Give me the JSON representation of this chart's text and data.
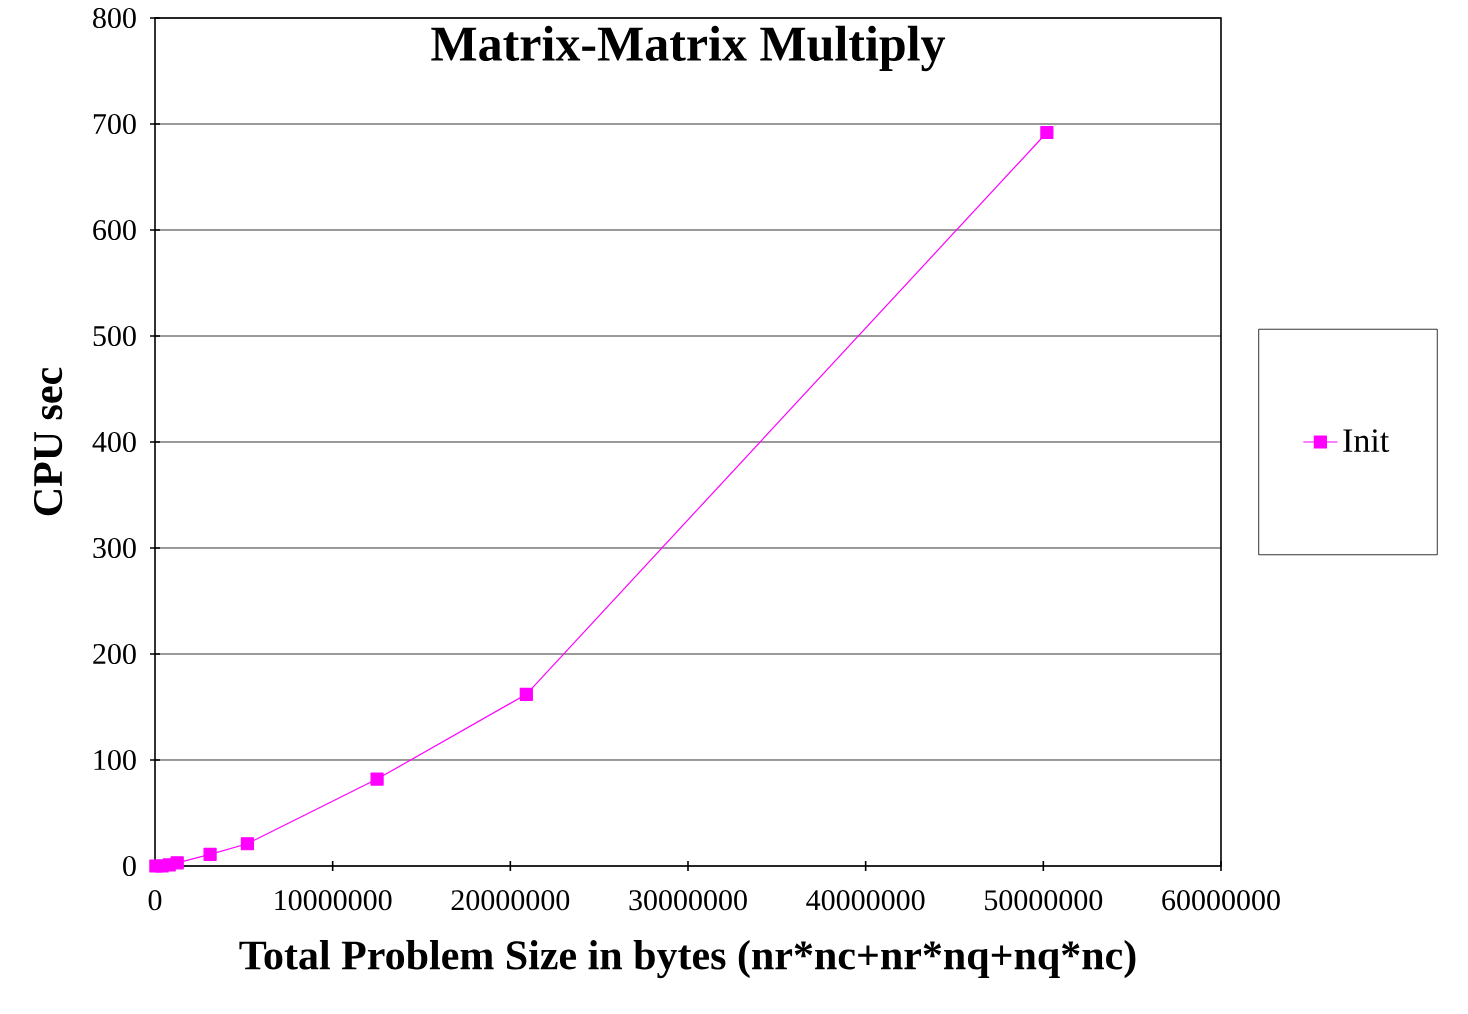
{
  "chart_data": {
    "type": "line",
    "title": "Matrix-Matrix Multiply",
    "xlabel": "Total Problem Size in bytes (nr*nc+nr*nq+nq*nc)",
    "ylabel": "CPU sec",
    "x": [
      50000,
      400000,
      800000,
      1250000,
      3100000,
      5200000,
      12500000,
      20900000,
      50200000
    ],
    "series": [
      {
        "name": "Init",
        "color": "#ff00ff",
        "values": [
          0,
          0,
          1,
          3,
          11,
          21,
          82,
          162,
          692
        ]
      }
    ],
    "xlim": [
      0,
      60000000
    ],
    "xticks": [
      0,
      10000000,
      20000000,
      30000000,
      40000000,
      50000000,
      60000000
    ],
    "ylim": [
      0,
      800
    ],
    "yticks": [
      0,
      100,
      200,
      300,
      400,
      500,
      600,
      700,
      800
    ],
    "grid": "y",
    "legend": "right",
    "marker": "square",
    "line_style": "solid"
  }
}
